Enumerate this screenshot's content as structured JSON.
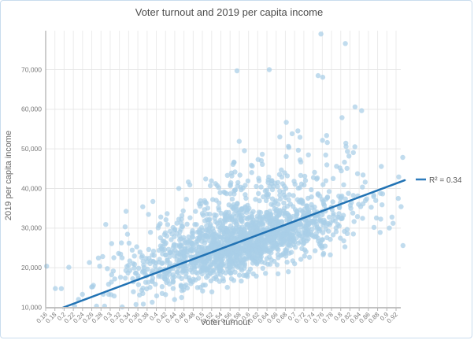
{
  "window": {
    "background": "#ffffff",
    "border_color": "#c9dcee"
  },
  "chart": {
    "title": "Voter turnout and 2019 per capita income",
    "x_axis_title": "Voter turnout",
    "y_axis_title": "2019 per capita income",
    "legend_label": "R² = 0.34"
  },
  "chart_data": {
    "type": "scatter",
    "title": "Voter turnout and 2019 per capita income",
    "xlabel": "Voter turnout",
    "ylabel": "2019 per capita income",
    "xlim": [
      0.16,
      0.947
    ],
    "ylim": [
      10000,
      79800
    ],
    "grid": true,
    "legend_position": "right",
    "x_tick_labels": [
      "0.16",
      "0.18",
      "0.2",
      "0.22",
      "0.24",
      "0.26",
      "0.28",
      "0.3",
      "0.32",
      "0.34",
      "0.36",
      "0.38",
      "0.4",
      "0.42",
      "0.44",
      "0.46",
      "0.48",
      "0.5",
      "0.52",
      "0.54",
      "0.56",
      "0.58",
      "0.6",
      "0.62",
      "0.64",
      "0.66",
      "0.68",
      "0.7",
      "0.72",
      "0.74",
      "0.76",
      "0.78",
      "0.8",
      "0.82",
      "0.84",
      "0.86",
      "0.88",
      "0.9",
      "0.92"
    ],
    "y_tick_values": [
      10000,
      20000,
      30000,
      40000,
      50000,
      60000,
      70000
    ],
    "y_tick_labels": [
      "10,000",
      "20,000",
      "30,000",
      "40,000",
      "50,000",
      "60,000",
      "70,000"
    ],
    "trendline": {
      "x1": 0.197,
      "y1": 9900,
      "x2": 0.939,
      "y2": 42090,
      "r_squared": 0.34,
      "color": "#2273b4",
      "width": 2.5
    },
    "legend": {
      "label": "R² = 0.34",
      "swatch_color": "#2e7cbd"
    },
    "points_style": {
      "color": "#a9cfe8",
      "radius": 3.2,
      "opacity": 0.72
    },
    "n_points_approx": 1785,
    "outlier_points": [
      [
        0.162,
        20400
      ],
      [
        0.285,
        13300
      ],
      [
        0.326,
        10100
      ],
      [
        0.391,
        11300
      ],
      [
        0.575,
        69700
      ],
      [
        0.645,
        70000
      ],
      [
        0.751,
        68500
      ],
      [
        0.761,
        68100
      ],
      [
        0.757,
        79000
      ],
      [
        0.81,
        76600
      ],
      [
        0.831,
        60600
      ],
      [
        0.935,
        25600
      ]
    ],
    "density_bands": [
      [
        0.17,
        0.21,
        2
      ],
      [
        0.21,
        0.25,
        4
      ],
      [
        0.25,
        0.29,
        9
      ],
      [
        0.29,
        0.33,
        17
      ],
      [
        0.33,
        0.37,
        32
      ],
      [
        0.37,
        0.41,
        55
      ],
      [
        0.41,
        0.45,
        90
      ],
      [
        0.45,
        0.49,
        140
      ],
      [
        0.49,
        0.53,
        195
      ],
      [
        0.53,
        0.57,
        235
      ],
      [
        0.57,
        0.61,
        250
      ],
      [
        0.61,
        0.65,
        228
      ],
      [
        0.65,
        0.69,
        188
      ],
      [
        0.69,
        0.73,
        138
      ],
      [
        0.73,
        0.77,
        88
      ],
      [
        0.77,
        0.81,
        52
      ],
      [
        0.81,
        0.85,
        28
      ],
      [
        0.85,
        0.89,
        14
      ],
      [
        0.89,
        0.935,
        8
      ]
    ],
    "y_model": {
      "mode_intercept": 8000,
      "mode_slope": 30000,
      "sd_down": 3600,
      "tail_prob": 0.3,
      "sd_up_intercept": 2500,
      "sd_up_slope": 12000,
      "cap_intercept": 20000,
      "cap_slope": 55000,
      "y_floor": 10300,
      "y_cap": 78000
    },
    "seed": 42,
    "colors": {
      "grid_vertical": "#ebebeb",
      "grid_horizontal": "#e6e6e6",
      "y_axis_line": "#9b9b9b",
      "x_axis_line": "#c2c2c2",
      "tick_mark": "#b4b4b4"
    }
  }
}
